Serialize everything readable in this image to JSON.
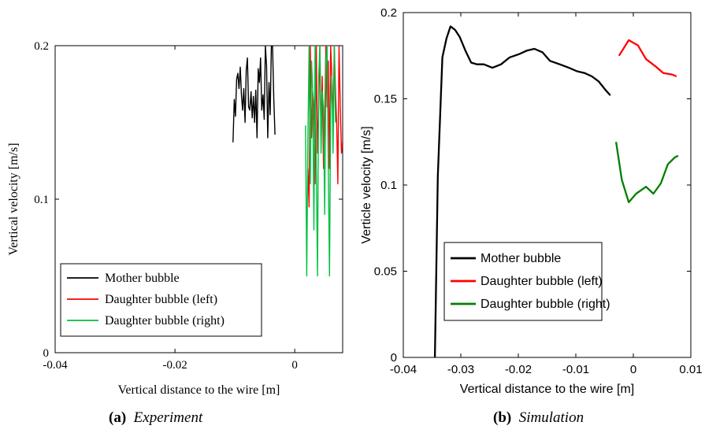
{
  "chart_data": [
    {
      "type": "line",
      "caption_tag": "(a)",
      "caption_text": "Experiment",
      "xlabel": "Vertical distance to the wire [m]",
      "ylabel": "Vertical velocity [m/s]",
      "xlim": [
        -0.04,
        0.008
      ],
      "ylim": [
        0,
        0.2
      ],
      "xticks": [
        -0.04,
        -0.02,
        0
      ],
      "xtick_labels": [
        "-0.04",
        "-0.02",
        "0"
      ],
      "yticks": [
        0,
        0.1,
        0.2
      ],
      "ytick_labels": [
        "0",
        "0.1",
        "0.2"
      ],
      "grid": false,
      "legend_position": "bottom-left",
      "series": [
        {
          "name": "Mother bubble",
          "color": "#000000",
          "x": [
            -0.0103,
            -0.0101,
            -0.0099,
            -0.0097,
            -0.0095,
            -0.0093,
            -0.0091,
            -0.0089,
            -0.0087,
            -0.0085,
            -0.0083,
            -0.0081,
            -0.0079,
            -0.0077,
            -0.0075,
            -0.0073,
            -0.0071,
            -0.0069,
            -0.0067,
            -0.0065,
            -0.0063,
            -0.0061,
            -0.0059,
            -0.0057,
            -0.0055,
            -0.0053,
            -0.0051,
            -0.0049,
            -0.0047,
            -0.0045,
            -0.0043,
            -0.0041,
            -0.0039,
            -0.0037,
            -0.0035,
            -0.0033
          ],
          "y": [
            0.137,
            0.165,
            0.154,
            0.178,
            0.182,
            0.172,
            0.186,
            0.168,
            0.158,
            0.172,
            0.15,
            0.184,
            0.192,
            0.16,
            0.158,
            0.17,
            0.153,
            0.167,
            0.15,
            0.171,
            0.14,
            0.185,
            0.176,
            0.192,
            0.158,
            0.168,
            0.152,
            0.2,
            0.187,
            0.14,
            0.176,
            0.155,
            0.2,
            0.2,
            0.165,
            0.142
          ]
        },
        {
          "name": "Daughter bubble (left)",
          "color": "#ff0000",
          "x": [
            0.0022,
            0.0024,
            0.0026,
            0.0028,
            0.003,
            0.0032,
            0.0034,
            0.0036,
            0.0038,
            0.004,
            0.0042,
            0.0044,
            0.0046,
            0.0048,
            0.005,
            0.0052,
            0.0054,
            0.0056,
            0.0058,
            0.006,
            0.0062,
            0.0064,
            0.0066,
            0.0068,
            0.007,
            0.0072,
            0.0074,
            0.0076,
            0.0078,
            0.008
          ],
          "y": [
            0.12,
            0.095,
            0.2,
            0.14,
            0.17,
            0.16,
            0.11,
            0.2,
            0.13,
            0.16,
            0.2,
            0.14,
            0.18,
            0.12,
            0.15,
            0.2,
            0.16,
            0.19,
            0.12,
            0.2,
            0.18,
            0.15,
            0.2,
            0.17,
            0.15,
            0.11,
            0.2,
            0.16,
            0.13,
            0.138
          ]
        },
        {
          "name": "Daughter bubble (right)",
          "color": "#00c040",
          "x": [
            0.0018,
            0.002,
            0.0022,
            0.0024,
            0.0026,
            0.0028,
            0.003,
            0.0032,
            0.0034,
            0.0036,
            0.0038,
            0.004,
            0.0042,
            0.0044,
            0.0046,
            0.0048,
            0.005,
            0.0052,
            0.0054,
            0.0056,
            0.0058,
            0.006,
            0.0062,
            0.0064,
            0.0066,
            0.0068
          ],
          "y": [
            0.148,
            0.05,
            0.14,
            0.2,
            0.11,
            0.19,
            0.17,
            0.08,
            0.2,
            0.12,
            0.05,
            0.18,
            0.2,
            0.13,
            0.17,
            0.16,
            0.09,
            0.19,
            0.2,
            0.12,
            0.05,
            0.16,
            0.18,
            0.13,
            0.2,
            0.15
          ]
        }
      ]
    },
    {
      "type": "line",
      "caption_tag": "(b)",
      "caption_text": "Simulation",
      "xlabel": "Vertical distance to the wire [m]",
      "ylabel": "Verticle velocity [m/s]",
      "xlim": [
        -0.04,
        0.01
      ],
      "ylim": [
        0,
        0.2
      ],
      "xticks": [
        -0.04,
        -0.03,
        -0.02,
        -0.01,
        0,
        0.01
      ],
      "xtick_labels": [
        "-0.04",
        "-0.03",
        "-0.02",
        "-0.01",
        "0",
        "0.01"
      ],
      "yticks": [
        0,
        0.05,
        0.1,
        0.15,
        0.2
      ],
      "ytick_labels": [
        "0",
        "0.05",
        "0.1",
        "0.15",
        "0.2"
      ],
      "grid": false,
      "legend_position": "bottom-left",
      "series": [
        {
          "name": "Mother bubble",
          "color": "#000000",
          "x": [
            -0.0345,
            -0.034,
            -0.0332,
            -0.0325,
            -0.0318,
            -0.031,
            -0.0302,
            -0.0292,
            -0.0282,
            -0.0272,
            -0.026,
            -0.0245,
            -0.023,
            -0.0215,
            -0.0198,
            -0.0185,
            -0.0172,
            -0.0158,
            -0.0145,
            -0.0128,
            -0.0112,
            -0.0098,
            -0.0085,
            -0.0072,
            -0.006,
            -0.0048,
            -0.004
          ],
          "y": [
            0,
            0.105,
            0.174,
            0.185,
            0.192,
            0.19,
            0.186,
            0.178,
            0.171,
            0.17,
            0.17,
            0.168,
            0.17,
            0.174,
            0.176,
            0.178,
            0.179,
            0.177,
            0.172,
            0.17,
            0.168,
            0.166,
            0.165,
            0.163,
            0.16,
            0.155,
            0.152
          ]
        },
        {
          "name": "Daughter bubble (left)",
          "color": "#ff0000",
          "x": [
            -0.0025,
            -0.0008,
            0.0008,
            0.0022,
            0.0038,
            0.0052,
            0.0068,
            0.0075
          ],
          "y": [
            0.175,
            0.184,
            0.181,
            0.173,
            0.169,
            0.165,
            0.164,
            0.163
          ]
        },
        {
          "name": "Daughter bubble (right)",
          "color": "#008000",
          "x": [
            -0.003,
            -0.002,
            -0.0008,
            0.0005,
            0.0022,
            0.0035,
            0.0048,
            0.006,
            0.0072,
            0.0078
          ],
          "y": [
            0.125,
            0.103,
            0.09,
            0.095,
            0.099,
            0.095,
            0.101,
            0.112,
            0.116,
            0.117
          ]
        }
      ]
    }
  ]
}
